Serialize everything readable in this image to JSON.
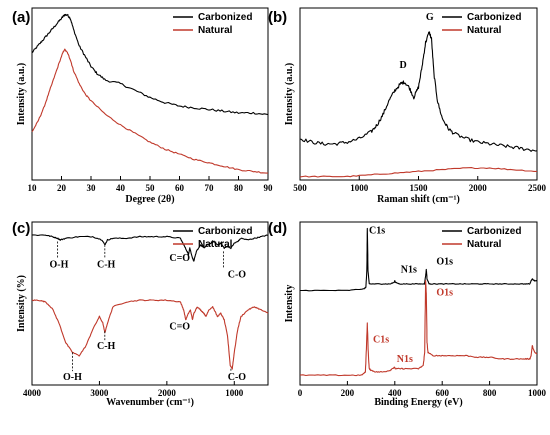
{
  "colors": {
    "carbonized": "#000000",
    "natural": "#c0392b"
  },
  "chart_data": [
    {
      "panel": "(a)",
      "type": "line",
      "xlabel": "Degree (2θ)",
      "ylabel": "Intensity (a.u.)",
      "xlim": [
        10,
        90
      ],
      "xticks": [
        10,
        20,
        30,
        40,
        50,
        60,
        70,
        80,
        90
      ],
      "ylim": [
        0,
        100
      ],
      "show_y_ticks": false,
      "legend_position": "top-right",
      "series": [
        {
          "name": "Carbonized",
          "color": "carbonized",
          "noise": 0.6,
          "x": [
            10,
            12,
            14,
            16,
            18,
            20,
            21,
            22,
            23,
            24,
            26,
            28,
            30,
            32,
            35,
            40,
            45,
            50,
            55,
            60,
            65,
            70,
            75,
            80,
            85,
            90
          ],
          "y": [
            74,
            78,
            82,
            86,
            90,
            94,
            96,
            96,
            94,
            88,
            78,
            72,
            66,
            62,
            58,
            56,
            52,
            48,
            45,
            43,
            42,
            41,
            40,
            39,
            39,
            38
          ]
        },
        {
          "name": "Natural",
          "color": "natural",
          "noise": 0.4,
          "x": [
            10,
            12,
            14,
            16,
            18,
            20,
            21,
            22,
            23,
            24,
            26,
            28,
            30,
            35,
            40,
            45,
            50,
            55,
            60,
            65,
            70,
            75,
            80,
            85,
            90
          ],
          "y": [
            28,
            34,
            42,
            52,
            62,
            72,
            76,
            74,
            70,
            64,
            56,
            50,
            46,
            38,
            32,
            27,
            22,
            18,
            15,
            12,
            10,
            8,
            6,
            5,
            4
          ]
        }
      ]
    },
    {
      "panel": "(b)",
      "type": "line",
      "xlabel": "Raman shift (cm⁻¹)",
      "ylabel": "Intensity (a.u.)",
      "xlim": [
        500,
        2500
      ],
      "xticks": [
        500,
        1000,
        1500,
        2000,
        2500
      ],
      "ylim": [
        0,
        100
      ],
      "show_y_ticks": false,
      "legend_position": "top-right",
      "annotations": [
        {
          "text": "D",
          "x": 1370,
          "y": 65,
          "color": "carbonized"
        },
        {
          "text": "G",
          "x": 1595,
          "y": 93,
          "color": "carbonized"
        }
      ],
      "series": [
        {
          "name": "Carbonized",
          "color": "carbonized",
          "noise": 1.0,
          "x": [
            500,
            600,
            700,
            800,
            900,
            1000,
            1100,
            1150,
            1200,
            1250,
            1300,
            1350,
            1380,
            1420,
            1460,
            1500,
            1530,
            1560,
            1590,
            1610,
            1630,
            1660,
            1700,
            1750,
            1800,
            1900,
            2000,
            2100,
            2200,
            2300,
            2400,
            2500
          ],
          "y": [
            24,
            22,
            21,
            21,
            22,
            24,
            28,
            32,
            38,
            46,
            52,
            56,
            57,
            54,
            48,
            54,
            66,
            80,
            86,
            82,
            62,
            46,
            36,
            30,
            27,
            24,
            22,
            21,
            20,
            19,
            18,
            17
          ]
        },
        {
          "name": "Natural",
          "color": "natural",
          "noise": 0.3,
          "x": [
            500,
            700,
            900,
            1100,
            1300,
            1500,
            1700,
            1900,
            2100,
            2300,
            2500
          ],
          "y": [
            2,
            2,
            2,
            3,
            4,
            5,
            6,
            7,
            7,
            6,
            5
          ]
        }
      ]
    },
    {
      "panel": "(c)",
      "type": "line",
      "xlabel": "Wavenumber (cm⁻¹)",
      "ylabel": "Intensity (%)",
      "xlim": [
        4000,
        500
      ],
      "xticks": [
        4000,
        3000,
        2000,
        1000
      ],
      "ylim": [
        0,
        100
      ],
      "show_y_ticks": false,
      "legend_position": "top-right",
      "annotations": [
        {
          "text": "O-H",
          "x": 3600,
          "y": 72,
          "color": "carbonized"
        },
        {
          "text": "C-H",
          "x": 2900,
          "y": 72,
          "color": "carbonized"
        },
        {
          "text": "C=O",
          "x": 1750,
          "y": 76,
          "color": "carbonized"
        },
        {
          "text": "C-O",
          "x": 1050,
          "y": 66,
          "color": "carbonized"
        },
        {
          "text": "C=O",
          "x": 1750,
          "y": 34,
          "color": "carbonized"
        },
        {
          "text": "C-H",
          "x": 2900,
          "y": 22,
          "color": "carbonized"
        },
        {
          "text": "O-H",
          "x": 3400,
          "y": 3,
          "color": "carbonized"
        },
        {
          "text": "C-O",
          "x": 1050,
          "y": 3,
          "color": "carbonized"
        }
      ],
      "series": [
        {
          "name": "Carbonized",
          "color": "carbonized",
          "noise": 0.3,
          "x": [
            4000,
            3800,
            3700,
            3620,
            3580,
            3500,
            3300,
            3100,
            2960,
            2920,
            2880,
            2800,
            2600,
            2400,
            2200,
            2000,
            1800,
            1750,
            1700,
            1680,
            1660,
            1620,
            1600,
            1560,
            1500,
            1450,
            1400,
            1300,
            1250,
            1200,
            1150,
            1100,
            1050,
            1000,
            950,
            900,
            800,
            700,
            600,
            500
          ],
          "y": [
            92,
            92,
            91,
            90,
            89,
            90,
            91,
            91,
            89,
            86,
            89,
            90,
            90,
            91,
            91,
            91,
            90,
            86,
            82,
            80,
            84,
            78,
            76,
            82,
            86,
            84,
            86,
            88,
            86,
            87,
            84,
            85,
            84,
            87,
            88,
            90,
            89,
            90,
            91,
            92
          ]
        },
        {
          "name": "Natural",
          "color": "natural",
          "noise": 0.3,
          "x": [
            4000,
            3900,
            3800,
            3700,
            3600,
            3500,
            3400,
            3300,
            3200,
            3100,
            3000,
            2950,
            2920,
            2880,
            2800,
            2600,
            2400,
            2200,
            2000,
            1800,
            1750,
            1720,
            1680,
            1650,
            1620,
            1600,
            1550,
            1500,
            1450,
            1420,
            1380,
            1320,
            1250,
            1200,
            1150,
            1100,
            1060,
            1030,
            1000,
            950,
            900,
            800,
            700,
            600,
            500
          ],
          "y": [
            52,
            52,
            51,
            47,
            38,
            26,
            20,
            18,
            24,
            34,
            42,
            38,
            32,
            38,
            48,
            51,
            52,
            52,
            52,
            51,
            46,
            40,
            44,
            46,
            40,
            44,
            48,
            46,
            44,
            42,
            46,
            48,
            42,
            44,
            40,
            30,
            12,
            10,
            20,
            34,
            42,
            46,
            48,
            46,
            44
          ]
        }
      ]
    },
    {
      "panel": "(d)",
      "type": "line",
      "xlabel": "Binding Energy (eV)",
      "ylabel": "Intensity",
      "xlim": [
        0,
        1000
      ],
      "xticks": [
        0,
        200,
        400,
        600,
        800,
        1000
      ],
      "ylim": [
        0,
        100
      ],
      "show_y_ticks": false,
      "legend_position": "top-right",
      "annotations": [
        {
          "text": "C1s",
          "x": 300,
          "y": 93,
          "color": "carbonized"
        },
        {
          "text": "N1s",
          "x": 400,
          "y": 69,
          "color": "carbonized"
        },
        {
          "text": "O1s",
          "x": 560,
          "y": 74,
          "color": "carbonized"
        },
        {
          "text": "O1s",
          "x": 560,
          "y": 55,
          "color": "natural"
        },
        {
          "text": "C1s",
          "x": 300,
          "y": 26,
          "color": "natural"
        },
        {
          "text": "N1s",
          "x": 400,
          "y": 14,
          "color": "natural"
        }
      ],
      "series": [
        {
          "name": "Carbonized",
          "color": "carbonized",
          "noise": 0.2,
          "x": [
            0,
            100,
            200,
            270,
            278,
            282,
            284,
            287,
            292,
            300,
            320,
            350,
            380,
            398,
            400,
            402,
            420,
            450,
            500,
            525,
            530,
            533,
            536,
            545,
            560,
            600,
            650,
            700,
            750,
            800,
            850,
            900,
            950,
            970,
            975,
            980,
            990,
            1000
          ],
          "y": [
            58,
            58,
            58,
            59,
            60,
            70,
            96,
            70,
            62,
            62,
            62,
            62,
            62,
            63,
            64,
            63,
            62,
            62,
            62,
            62,
            67,
            71,
            65,
            62,
            62,
            62,
            62,
            62,
            62,
            62,
            62,
            62,
            62,
            62,
            64,
            65,
            64,
            64
          ]
        },
        {
          "name": "Natural",
          "color": "natural",
          "noise": 0.3,
          "x": [
            0,
            100,
            200,
            260,
            276,
            280,
            284,
            288,
            292,
            300,
            320,
            350,
            380,
            398,
            402,
            420,
            450,
            500,
            520,
            526,
            530,
            533,
            536,
            540,
            560,
            600,
            650,
            700,
            750,
            800,
            850,
            900,
            950,
            970,
            975,
            980,
            990,
            1000
          ],
          "y": [
            6,
            6,
            6,
            6,
            8,
            22,
            38,
            20,
            10,
            9,
            8,
            8,
            9,
            11,
            10,
            10,
            10,
            10,
            12,
            20,
            64,
            56,
            26,
            20,
            18,
            18,
            18,
            18,
            17,
            17,
            16,
            16,
            16,
            16,
            18,
            24,
            20,
            19
          ]
        }
      ]
    }
  ]
}
